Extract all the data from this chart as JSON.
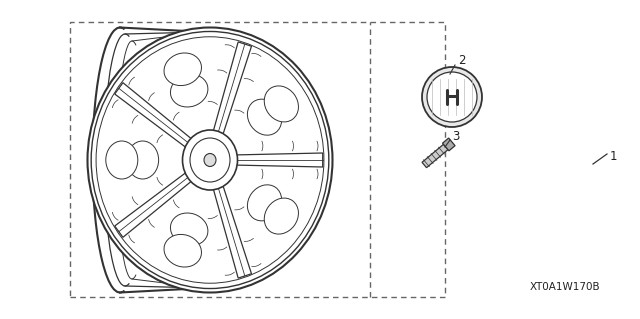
{
  "bg_color": "#ffffff",
  "border_color": "#666666",
  "line_color": "#333333",
  "text_color": "#222222",
  "part_number_text": "XT0A1W170B",
  "label_1": "1",
  "label_2": "2",
  "label_3": "3",
  "figsize": [
    6.4,
    3.19
  ],
  "dpi": 100
}
